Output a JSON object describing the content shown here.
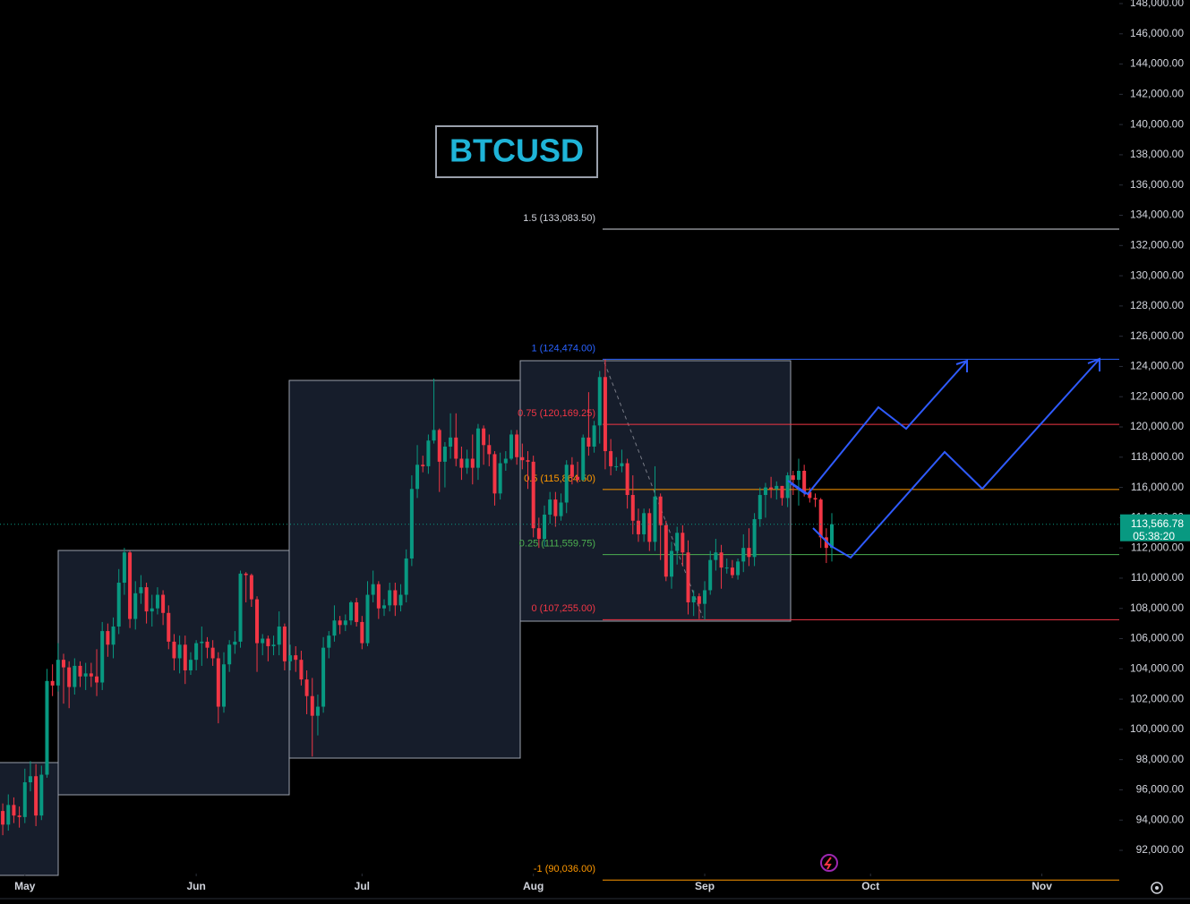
{
  "chart_data": {
    "type": "candlestick",
    "title": "BTCUSD",
    "xlim": [
      0.5,
      203
    ],
    "ylim": [
      90462,
      148237
    ],
    "grid": false,
    "up_color": "#089981",
    "down_color": "#f23645",
    "xticks": [
      {
        "value": 5,
        "label": "May"
      },
      {
        "value": 36,
        "label": "Jun"
      },
      {
        "value": 66,
        "label": "Jul"
      },
      {
        "value": 97,
        "label": "Aug"
      },
      {
        "value": 128,
        "label": "Sep"
      },
      {
        "value": 158,
        "label": "Oct"
      },
      {
        "value": 189,
        "label": "Nov"
      }
    ],
    "yticks": [
      {
        "value": 92000,
        "label": "92,000.00"
      },
      {
        "value": 94000,
        "label": "94,000.00"
      },
      {
        "value": 96000,
        "label": "96,000.00"
      },
      {
        "value": 98000,
        "label": "98,000.00"
      },
      {
        "value": 100000,
        "label": "100,000.00"
      },
      {
        "value": 102000,
        "label": "102,000.00"
      },
      {
        "value": 104000,
        "label": "104,000.00"
      },
      {
        "value": 106000,
        "label": "106,000.00"
      },
      {
        "value": 108000,
        "label": "108,000.00"
      },
      {
        "value": 110000,
        "label": "110,000.00"
      },
      {
        "value": 112000,
        "label": "112,000.00"
      },
      {
        "value": 114000,
        "label": "114,000.00"
      },
      {
        "value": 116000,
        "label": "116,000.00"
      },
      {
        "value": 118000,
        "label": "118,000.00"
      },
      {
        "value": 120000,
        "label": "120,000.00"
      },
      {
        "value": 122000,
        "label": "122,000.00"
      },
      {
        "value": 124000,
        "label": "124,000.00"
      },
      {
        "value": 126000,
        "label": "126,000.00"
      },
      {
        "value": 128000,
        "label": "128,000.00"
      },
      {
        "value": 130000,
        "label": "130,000.00"
      },
      {
        "value": 132000,
        "label": "132,000.00"
      },
      {
        "value": 134000,
        "label": "134,000.00"
      },
      {
        "value": 136000,
        "label": "136,000.00"
      },
      {
        "value": 138000,
        "label": "138,000.00"
      },
      {
        "value": 140000,
        "label": "140,000.00"
      },
      {
        "value": 142000,
        "label": "142,000.00"
      },
      {
        "value": 144000,
        "label": "144,000.00"
      },
      {
        "value": 146000,
        "label": "146,000.00"
      },
      {
        "value": 148000,
        "label": "148,000.00"
      }
    ],
    "fib_levels": [
      {
        "label": "1.5 (133,083.50)",
        "value": 133083.5,
        "color": "#d1d4dc"
      },
      {
        "label": "1 (124,474.00)",
        "value": 124474,
        "color": "#2962ff"
      },
      {
        "label": "0.75 (120,169.25)",
        "value": 120169.25,
        "color": "#f23645"
      },
      {
        "label": "0.5 (115,864.50)",
        "value": 115864.5,
        "color": "#ff9800"
      },
      {
        "label": "0.25 (111,559.75)",
        "value": 111559.75,
        "color": "#4caf50"
      },
      {
        "label": "0 (107,255.00)",
        "value": 107255,
        "color": "#f23645"
      },
      {
        "label": "-1 (90,036.00)",
        "value": 90036,
        "color": "#ff9800"
      }
    ],
    "price_label": "113,566.78",
    "countdown": "05:38:20",
    "x": [
      0,
      1,
      2,
      3,
      4,
      5,
      6,
      7,
      8,
      9,
      10,
      11,
      12,
      13,
      14,
      15,
      16,
      17,
      18,
      19,
      20,
      21,
      22,
      23,
      24,
      25,
      26,
      27,
      28,
      29,
      30,
      31,
      32,
      33,
      34,
      35,
      36,
      37,
      38,
      39,
      40,
      41,
      42,
      43,
      44,
      45,
      46,
      47,
      48,
      49,
      50,
      51,
      52,
      53,
      54,
      55,
      56,
      57,
      58,
      59,
      60,
      61,
      62,
      63,
      64,
      65,
      66,
      67,
      68,
      69,
      70,
      71,
      72,
      73,
      74,
      75,
      76,
      77,
      78,
      79,
      80,
      81,
      82,
      83,
      84,
      85,
      86,
      87,
      88,
      89,
      90,
      91,
      92,
      93,
      94,
      95,
      96,
      97,
      98,
      99,
      100,
      101,
      102,
      103,
      104,
      105,
      106,
      107,
      108,
      109,
      110,
      111,
      112,
      113,
      114,
      115,
      116,
      117,
      118,
      119,
      120,
      121,
      122,
      123,
      124,
      125,
      126,
      127,
      128,
      129,
      130,
      131,
      132,
      133,
      134,
      135,
      136,
      137,
      138,
      139,
      140,
      141,
      142,
      143,
      144,
      145,
      146,
      147,
      148,
      149,
      150,
      151
    ],
    "ohlc": [
      [
        94000,
        95300,
        93400,
        94600
      ],
      [
        94600,
        95100,
        93000,
        93700
      ],
      [
        93700,
        95700,
        93300,
        95000
      ],
      [
        95000,
        95500,
        93800,
        94300
      ],
      [
        94300,
        94900,
        93500,
        94200
      ],
      [
        94200,
        97400,
        93800,
        96500
      ],
      [
        96500,
        97900,
        95900,
        96900
      ],
      [
        96900,
        97700,
        93600,
        94300
      ],
      [
        94300,
        97600,
        94000,
        97000
      ],
      [
        97000,
        104000,
        96800,
        103200
      ],
      [
        103200,
        104300,
        102200,
        102900
      ],
      [
        102900,
        105700,
        102500,
        104600
      ],
      [
        104600,
        105000,
        101700,
        104100
      ],
      [
        104100,
        104500,
        101400,
        102800
      ],
      [
        102800,
        104700,
        102300,
        104200
      ],
      [
        104200,
        104500,
        102800,
        103500
      ],
      [
        103500,
        104400,
        102600,
        103700
      ],
      [
        103700,
        104400,
        102800,
        103500
      ],
      [
        103500,
        105300,
        102200,
        103100
      ],
      [
        103100,
        107100,
        102600,
        106500
      ],
      [
        106500,
        107000,
        104800,
        105600
      ],
      [
        105600,
        107400,
        104700,
        106800
      ],
      [
        106800,
        110600,
        106300,
        109700
      ],
      [
        109700,
        112000,
        108900,
        111700
      ],
      [
        111700,
        111800,
        106700,
        107300
      ],
      [
        107300,
        109800,
        106600,
        109000
      ],
      [
        109000,
        110200,
        108300,
        109400
      ],
      [
        109400,
        109700,
        107000,
        107800
      ],
      [
        107800,
        108900,
        106800,
        108000
      ],
      [
        108000,
        109400,
        107600,
        108900
      ],
      [
        108900,
        109200,
        106900,
        107700
      ],
      [
        107700,
        108200,
        105300,
        105800
      ],
      [
        105800,
        106300,
        103900,
        104700
      ],
      [
        104700,
        106200,
        103700,
        105600
      ],
      [
        105600,
        106200,
        103000,
        103900
      ],
      [
        103900,
        105100,
        103600,
        104600
      ],
      [
        104600,
        105900,
        103900,
        105700
      ],
      [
        105700,
        106800,
        104200,
        105800
      ],
      [
        105800,
        106100,
        104700,
        105400
      ],
      [
        105400,
        105900,
        104200,
        104700
      ],
      [
        104700,
        105100,
        100400,
        101500
      ],
      [
        101500,
        105100,
        101100,
        104300
      ],
      [
        104300,
        105900,
        103800,
        105600
      ],
      [
        105600,
        106500,
        105000,
        105800
      ],
      [
        105800,
        110500,
        105400,
        110300
      ],
      [
        110300,
        110400,
        108400,
        110200
      ],
      [
        110200,
        110300,
        108100,
        108600
      ],
      [
        108600,
        108800,
        103800,
        105700
      ],
      [
        105700,
        106300,
        104900,
        106000
      ],
      [
        106000,
        106200,
        104500,
        105500
      ],
      [
        105500,
        106200,
        104900,
        105600
      ],
      [
        105600,
        107800,
        104900,
        106800
      ],
      [
        106800,
        107000,
        103900,
        104500
      ],
      [
        104500,
        105600,
        103900,
        104900
      ],
      [
        104900,
        105500,
        103800,
        104600
      ],
      [
        104600,
        105200,
        102900,
        103300
      ],
      [
        103300,
        103900,
        101000,
        102200
      ],
      [
        102200,
        103400,
        98200,
        100900
      ],
      [
        100900,
        102300,
        99600,
        101500
      ],
      [
        101500,
        106100,
        101100,
        105400
      ],
      [
        105400,
        106500,
        104700,
        106200
      ],
      [
        106200,
        108200,
        105800,
        107200
      ],
      [
        107200,
        107500,
        106300,
        106900
      ],
      [
        106900,
        107600,
        106500,
        107200
      ],
      [
        107200,
        108500,
        106900,
        108400
      ],
      [
        108400,
        108700,
        106800,
        107100
      ],
      [
        107100,
        107500,
        105300,
        105700
      ],
      [
        105700,
        109800,
        105500,
        108900
      ],
      [
        108900,
        110500,
        108400,
        109600
      ],
      [
        109600,
        109800,
        107300,
        108000
      ],
      [
        108000,
        108600,
        107500,
        108200
      ],
      [
        108200,
        109700,
        107800,
        109200
      ],
      [
        109200,
        109700,
        107500,
        108200
      ],
      [
        108200,
        109600,
        107800,
        108900
      ],
      [
        108900,
        111900,
        108400,
        111300
      ],
      [
        111300,
        116800,
        110800,
        115900
      ],
      [
        115900,
        118800,
        115300,
        117500
      ],
      [
        117500,
        118100,
        117000,
        117400
      ],
      [
        117400,
        119500,
        116900,
        119100
      ],
      [
        119100,
        123200,
        118900,
        119800
      ],
      [
        119800,
        119900,
        115700,
        117700
      ],
      [
        117700,
        119000,
        116000,
        118700
      ],
      [
        118700,
        120900,
        117900,
        119300
      ],
      [
        119300,
        120900,
        117400,
        117900
      ],
      [
        117900,
        118700,
        116500,
        117300
      ],
      [
        117300,
        118500,
        116900,
        117900
      ],
      [
        117900,
        119500,
        116200,
        117300
      ],
      [
        117300,
        120200,
        116500,
        119900
      ],
      [
        119900,
        120100,
        117500,
        118800
      ],
      [
        118800,
        119500,
        117400,
        118200
      ],
      [
        118200,
        118400,
        114800,
        115600
      ],
      [
        115600,
        118300,
        115200,
        117600
      ],
      [
        117600,
        118400,
        117100,
        117900
      ],
      [
        117900,
        119800,
        117800,
        119500
      ],
      [
        119500,
        119800,
        117500,
        118000
      ],
      [
        118000,
        118900,
        117200,
        117800
      ],
      [
        117800,
        118400,
        115900,
        117700
      ],
      [
        117700,
        118100,
        112700,
        113300
      ],
      [
        113300,
        114000,
        112000,
        112600
      ],
      [
        112600,
        114800,
        112100,
        114200
      ],
      [
        114200,
        115700,
        113600,
        115200
      ],
      [
        115200,
        115700,
        113400,
        114100
      ],
      [
        114100,
        115600,
        113800,
        115000
      ],
      [
        115000,
        117800,
        114300,
        117500
      ],
      [
        117500,
        118000,
        116200,
        116700
      ],
      [
        116700,
        117700,
        116300,
        116500
      ],
      [
        116500,
        119500,
        116400,
        119300
      ],
      [
        119300,
        122300,
        118100,
        118700
      ],
      [
        118700,
        120400,
        118300,
        120100
      ],
      [
        120100,
        123700,
        118900,
        123300
      ],
      [
        123300,
        124474,
        117200,
        118400
      ],
      [
        118400,
        119200,
        116800,
        117400
      ],
      [
        117400,
        118000,
        117100,
        117400
      ],
      [
        117400,
        118500,
        117000,
        117600
      ],
      [
        117600,
        117900,
        114600,
        115500
      ],
      [
        115500,
        116800,
        112900,
        113800
      ],
      [
        113800,
        114600,
        112400,
        112900
      ],
      [
        112900,
        114600,
        112400,
        114300
      ],
      [
        114300,
        114600,
        111800,
        112400
      ],
      [
        112400,
        117400,
        111800,
        115400
      ],
      [
        115400,
        115600,
        111200,
        113500
      ],
      [
        113500,
        113800,
        109800,
        110100
      ],
      [
        110100,
        112400,
        109300,
        111800
      ],
      [
        111800,
        113400,
        110900,
        113000
      ],
      [
        113000,
        113500,
        110800,
        111700
      ],
      [
        111700,
        112500,
        107600,
        108400
      ],
      [
        108400,
        109200,
        107500,
        108800
      ],
      [
        108800,
        109000,
        107300,
        108300
      ],
      [
        108300,
        109800,
        107255,
        109200
      ],
      [
        109200,
        111800,
        108900,
        111200
      ],
      [
        111200,
        112600,
        110500,
        111700
      ],
      [
        111700,
        112200,
        109300,
        110700
      ],
      [
        110700,
        111300,
        110300,
        110700
      ],
      [
        110700,
        111200,
        110000,
        110200
      ],
      [
        110200,
        111300,
        109900,
        111100
      ],
      [
        111100,
        112900,
        110400,
        112000
      ],
      [
        112000,
        113300,
        110800,
        111400
      ],
      [
        111400,
        114300,
        110800,
        113900
      ],
      [
        113900,
        116000,
        113400,
        115500
      ],
      [
        115500,
        116300,
        114000,
        116000
      ],
      [
        116000,
        116700,
        115300,
        115900
      ],
      [
        115900,
        116400,
        115200,
        116100
      ],
      [
        116100,
        116100,
        114800,
        115300
      ],
      [
        115300,
        117000,
        114700,
        116800
      ],
      [
        116800,
        117100,
        115500,
        116500
      ],
      [
        116500,
        117900,
        114800,
        117100
      ],
      [
        117100,
        117500,
        115400,
        115700
      ],
      [
        115700,
        116000,
        115000,
        115300
      ],
      [
        115300,
        115600,
        114700,
        115200
      ],
      [
        115200,
        115300,
        112000,
        112700
      ],
      [
        112700,
        113300,
        111000,
        112000
      ],
      [
        112000,
        114300,
        111100,
        113566.78
      ]
    ]
  }
}
